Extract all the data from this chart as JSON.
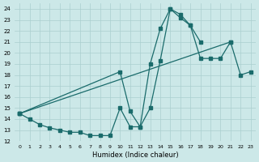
{
  "bg_color": "#cce8e8",
  "grid_color": "#aacfcf",
  "line_color": "#1a6b6b",
  "xlabel": "Humidex (Indice chaleur)",
  "xlim": [
    -0.5,
    23.5
  ],
  "ylim": [
    12,
    24.5
  ],
  "yticks": [
    12,
    13,
    14,
    15,
    16,
    17,
    18,
    19,
    20,
    21,
    22,
    23,
    24
  ],
  "xticks": [
    0,
    1,
    2,
    3,
    4,
    5,
    6,
    7,
    8,
    9,
    10,
    11,
    12,
    13,
    14,
    15,
    16,
    17,
    18,
    19,
    20,
    21,
    22,
    23
  ],
  "curve1_x": [
    0,
    1,
    2,
    3,
    4,
    5,
    6,
    7,
    8,
    9,
    10,
    11,
    12,
    13,
    14,
    15,
    16,
    17,
    18
  ],
  "curve1_y": [
    14.5,
    14.0,
    13.5,
    13.2,
    13.0,
    12.8,
    12.8,
    12.5,
    12.5,
    12.5,
    15.0,
    13.3,
    13.3,
    19.0,
    22.2,
    24.0,
    23.5,
    22.5,
    21.0
  ],
  "curve2_x": [
    0,
    10,
    11,
    12,
    13,
    14,
    15,
    16,
    17,
    18,
    19,
    20,
    21
  ],
  "curve2_y": [
    14.5,
    18.3,
    14.7,
    13.3,
    15.0,
    19.3,
    24.0,
    23.2,
    22.5,
    19.5,
    19.5,
    19.5,
    21.0
  ],
  "curve3_x": [
    0,
    21,
    22,
    23
  ],
  "curve3_y": [
    14.5,
    21.0,
    18.0,
    18.3
  ]
}
